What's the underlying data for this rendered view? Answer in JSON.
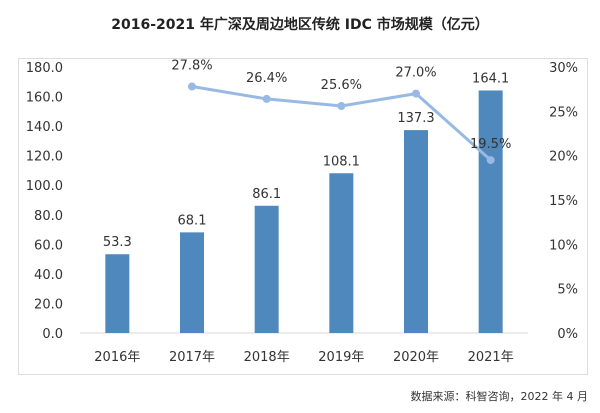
{
  "watermark": "科智咨询",
  "source": "数据来源：科智咨询，2022 年 4 月",
  "colors": {
    "bar": "#4f88bd",
    "line": "#98b9e3",
    "axis": "#d9d9d9",
    "text": "#333333"
  },
  "chart_data": {
    "type": "bar+line",
    "title": "2016-2021 年广深及周边地区传统 IDC 市场规模（亿元）",
    "categories": [
      "2016年",
      "2017年",
      "2018年",
      "2019年",
      "2020年",
      "2021年"
    ],
    "series": [
      {
        "type": "bar",
        "axis": "left",
        "values": [
          53.3,
          68.1,
          86.1,
          108.1,
          137.3,
          164.1
        ],
        "labels": [
          "53.3",
          "68.1",
          "86.1",
          "108.1",
          "137.3",
          "164.1"
        ]
      },
      {
        "type": "line",
        "axis": "right",
        "values": [
          null,
          27.8,
          26.4,
          25.6,
          27.0,
          19.5
        ],
        "labels": [
          "",
          "27.8%",
          "26.4%",
          "25.6%",
          "27.0%",
          "19.5%"
        ]
      }
    ],
    "left_axis": {
      "range": [
        0,
        180
      ],
      "ticks": [
        "0.0",
        "20.0",
        "40.0",
        "60.0",
        "80.0",
        "100.0",
        "120.0",
        "140.0",
        "160.0",
        "180.0"
      ]
    },
    "right_axis": {
      "range": [
        0,
        30
      ],
      "ticks": [
        "0%",
        "5%",
        "10%",
        "15%",
        "20%",
        "25%",
        "30%"
      ]
    },
    "grid": false,
    "legend": "none"
  }
}
